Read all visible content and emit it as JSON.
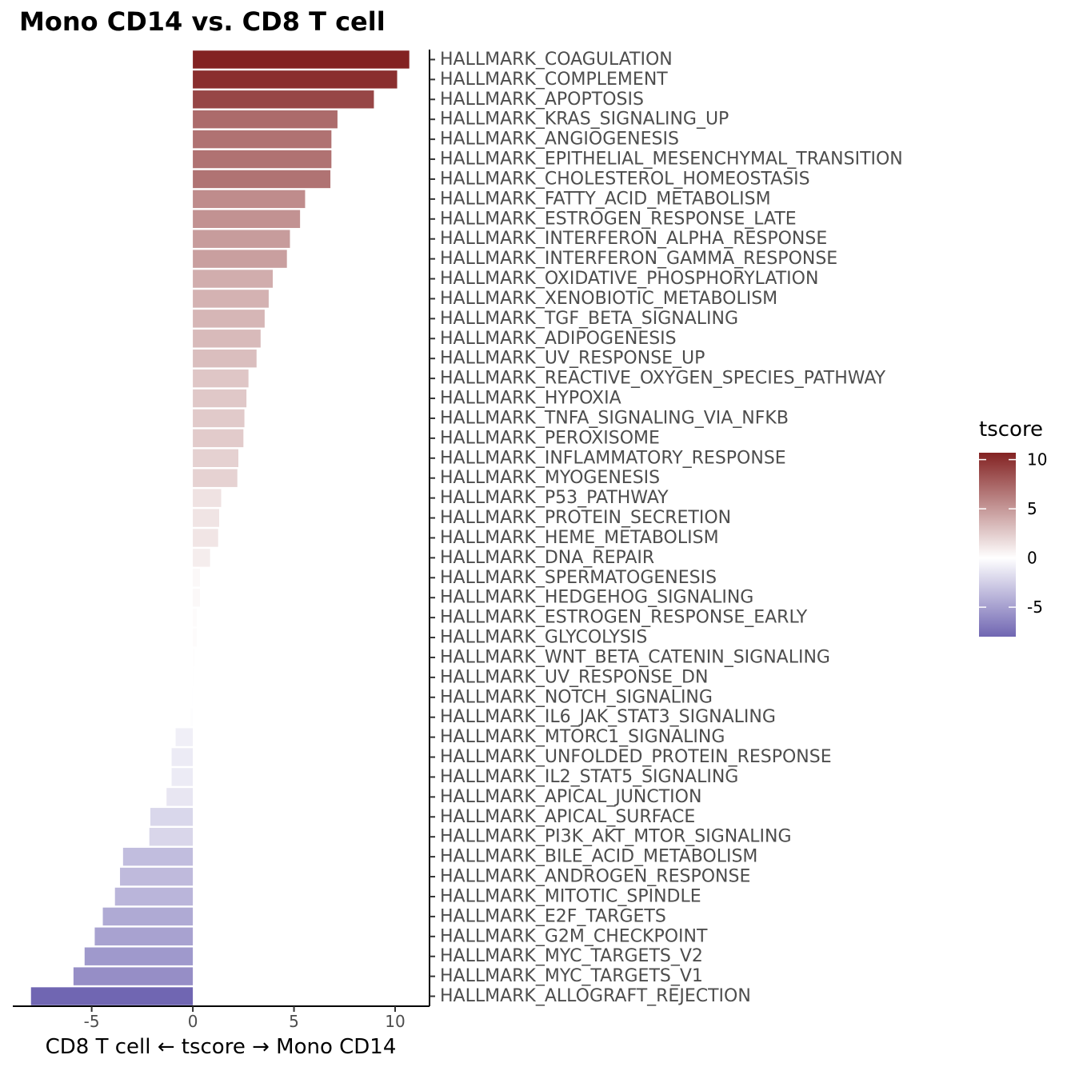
{
  "chart_data": {
    "type": "bar",
    "orientation": "horizontal",
    "title": "Mono CD14 vs. CD8 T cell",
    "xlabel": "CD8 T cell ← tscore → Mono CD14",
    "ylabel": "",
    "xlim": [
      -8.9,
      11.7
    ],
    "x_ticks": [
      -5,
      0,
      5,
      10
    ],
    "x_tick_labels": [
      "-5",
      "0",
      "5",
      "10"
    ],
    "grid": false,
    "legend": {
      "title": "tscore",
      "placement": "right",
      "type": "colorbar",
      "range": [
        -8,
        10.7
      ],
      "ticks": [
        10,
        5,
        0,
        -5
      ],
      "tick_labels": [
        "10",
        "5",
        "0",
        "-5"
      ],
      "colors": {
        "high": "#832222",
        "mid": "#ffffff",
        "low": "#7066b2"
      }
    },
    "categories": [
      "HALLMARK_COAGULATION",
      "HALLMARK_COMPLEMENT",
      "HALLMARK_APOPTOSIS",
      "HALLMARK_KRAS_SIGNALING_UP",
      "HALLMARK_ANGIOGENESIS",
      "HALLMARK_EPITHELIAL_MESENCHYMAL_TRANSITION",
      "HALLMARK_CHOLESTEROL_HOMEOSTASIS",
      "HALLMARK_FATTY_ACID_METABOLISM",
      "HALLMARK_ESTROGEN_RESPONSE_LATE",
      "HALLMARK_INTERFERON_ALPHA_RESPONSE",
      "HALLMARK_INTERFERON_GAMMA_RESPONSE",
      "HALLMARK_OXIDATIVE_PHOSPHORYLATION",
      "HALLMARK_XENOBIOTIC_METABOLISM",
      "HALLMARK_TGF_BETA_SIGNALING",
      "HALLMARK_ADIPOGENESIS",
      "HALLMARK_UV_RESPONSE_UP",
      "HALLMARK_REACTIVE_OXYGEN_SPECIES_PATHWAY",
      "HALLMARK_HYPOXIA",
      "HALLMARK_TNFA_SIGNALING_VIA_NFKB",
      "HALLMARK_PEROXISOME",
      "HALLMARK_INFLAMMATORY_RESPONSE",
      "HALLMARK_MYOGENESIS",
      "HALLMARK_P53_PATHWAY",
      "HALLMARK_PROTEIN_SECRETION",
      "HALLMARK_HEME_METABOLISM",
      "HALLMARK_DNA_REPAIR",
      "HALLMARK_SPERMATOGENESIS",
      "HALLMARK_HEDGEHOG_SIGNALING",
      "HALLMARK_ESTROGEN_RESPONSE_EARLY",
      "HALLMARK_GLYCOLYSIS",
      "HALLMARK_WNT_BETA_CATENIN_SIGNALING",
      "HALLMARK_UV_RESPONSE_DN",
      "HALLMARK_NOTCH_SIGNALING",
      "HALLMARK_IL6_JAK_STAT3_SIGNALING",
      "HALLMARK_MTORC1_SIGNALING",
      "HALLMARK_UNFOLDED_PROTEIN_RESPONSE",
      "HALLMARK_IL2_STAT5_SIGNALING",
      "HALLMARK_APICAL_JUNCTION",
      "HALLMARK_APICAL_SURFACE",
      "HALLMARK_PI3K_AKT_MTOR_SIGNALING",
      "HALLMARK_BILE_ACID_METABOLISM",
      "HALLMARK_ANDROGEN_RESPONSE",
      "HALLMARK_MITOTIC_SPINDLE",
      "HALLMARK_E2F_TARGETS",
      "HALLMARK_G2M_CHECKPOINT",
      "HALLMARK_MYC_TARGETS_V2",
      "HALLMARK_MYC_TARGETS_V1",
      "HALLMARK_ALLOGRAFT_REJECTION"
    ],
    "values": [
      10.7,
      10.1,
      8.95,
      7.15,
      6.85,
      6.85,
      6.8,
      5.55,
      5.3,
      4.8,
      4.65,
      3.95,
      3.75,
      3.55,
      3.35,
      3.15,
      2.75,
      2.65,
      2.55,
      2.5,
      2.25,
      2.2,
      1.4,
      1.3,
      1.25,
      0.85,
      0.35,
      0.35,
      0.2,
      0.2,
      0.1,
      0.05,
      -0.05,
      -0.1,
      -0.85,
      -1.05,
      -1.05,
      -1.3,
      -2.1,
      -2.15,
      -3.45,
      -3.6,
      -3.85,
      -4.45,
      -4.85,
      -5.35,
      -5.9,
      -8.0
    ]
  }
}
